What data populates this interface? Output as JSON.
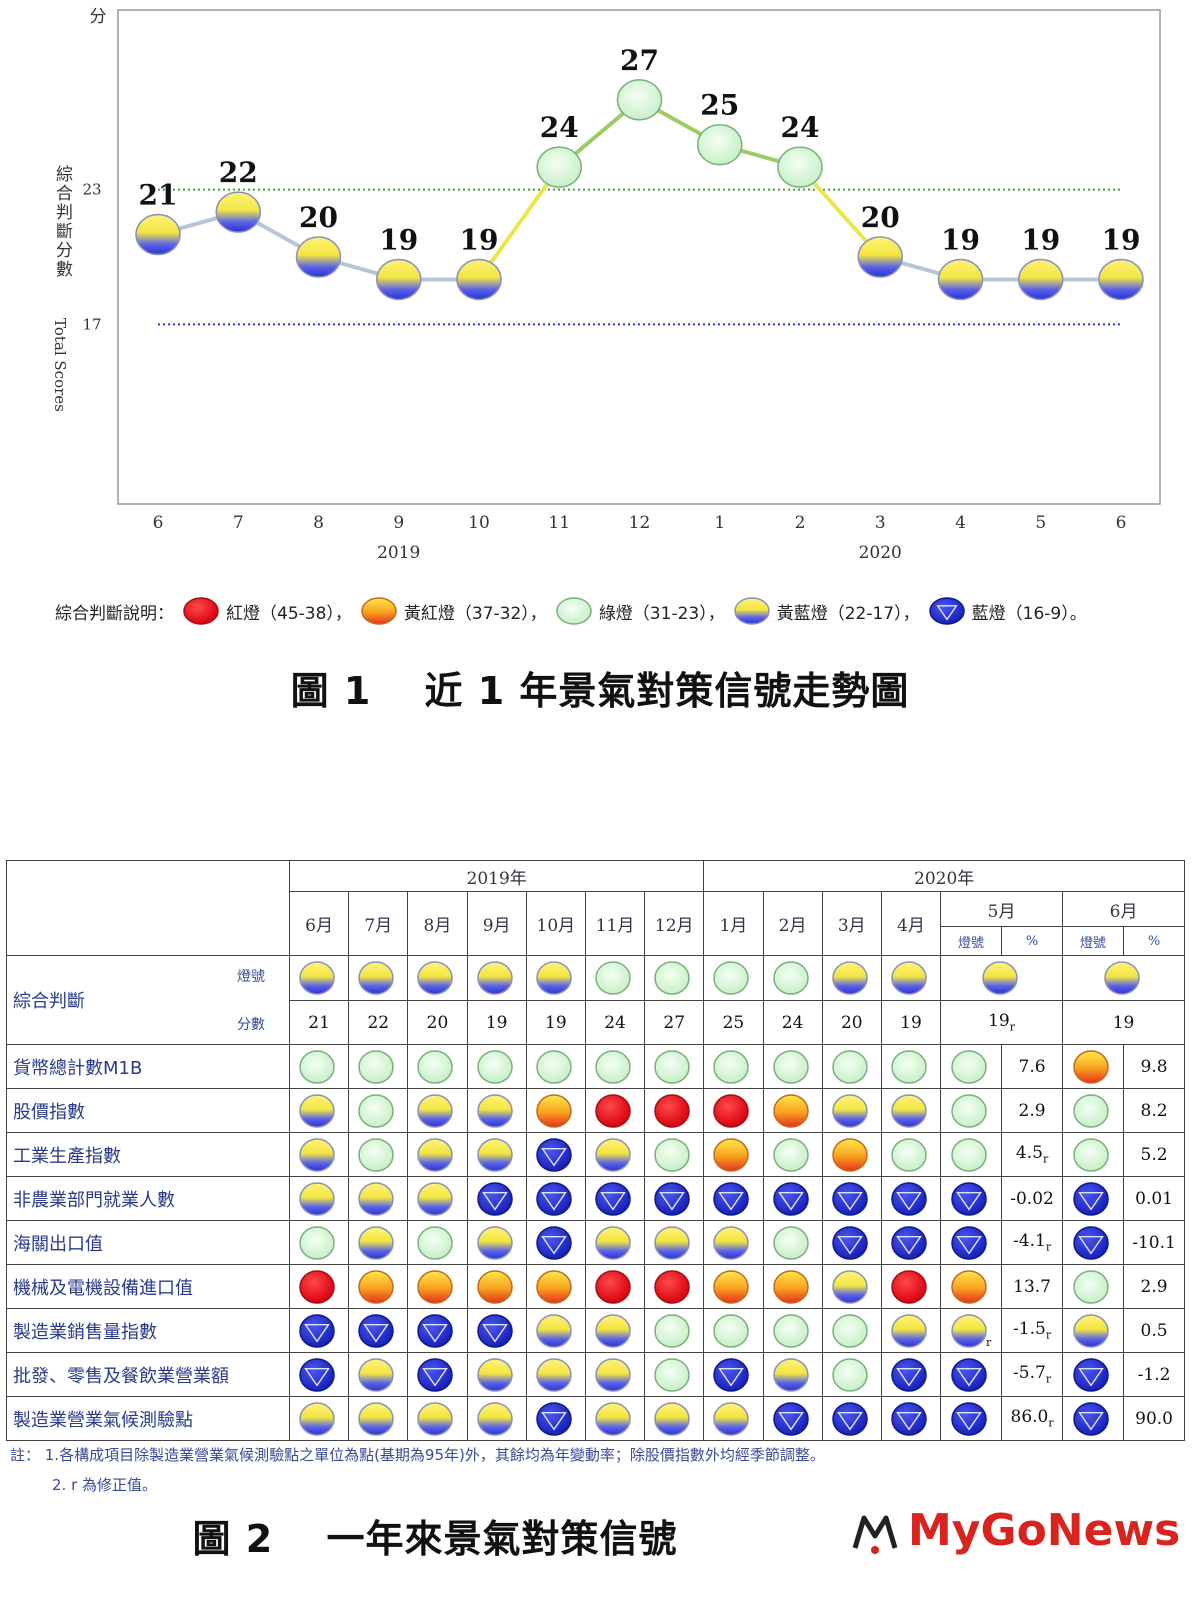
{
  "chart_data": {
    "type": "line",
    "title": "",
    "ylabel_unit": "分",
    "ylabel": "綜合判斷分數",
    "ylabel_en": "Total Scores",
    "ylim": [
      9,
      31
    ],
    "reference_lines": [
      23,
      17
    ],
    "categories": [
      "6",
      "7",
      "8",
      "9",
      "10",
      "11",
      "12",
      "1",
      "2",
      "3",
      "4",
      "5",
      "6"
    ],
    "year_labels": {
      "2019": "9",
      "2020": "3"
    },
    "years": [
      "2019",
      "2020"
    ],
    "values": [
      21,
      22,
      20,
      19,
      19,
      24,
      27,
      25,
      24,
      20,
      19,
      19,
      19
    ],
    "light_colors": [
      "yellow-blue",
      "yellow-blue",
      "yellow-blue",
      "yellow-blue",
      "yellow-blue",
      "green",
      "green",
      "green",
      "green",
      "yellow-blue",
      "yellow-blue",
      "yellow-blue",
      "yellow-blue"
    ],
    "grid": false
  },
  "legend": {
    "prefix": "綜合判斷說明：",
    "items": [
      {
        "type": "red",
        "text": "紅燈（45-38）"
      },
      {
        "type": "yellow-red",
        "text": "黃紅燈（37-32）"
      },
      {
        "type": "green",
        "text": "綠燈（31-23）"
      },
      {
        "type": "yellow-blue",
        "text": "黃藍燈（22-17）"
      },
      {
        "type": "blue",
        "text": "藍燈（16-9）"
      }
    ],
    "separators": [
      "，",
      "，",
      "，",
      "，",
      "。"
    ]
  },
  "caption1": "圖 1　 近 1 年景氣對策信號走勢圖",
  "colors": {
    "red": "#e8141b",
    "yellow-red": "#f59a1a",
    "green": "#d8f5d8",
    "yellow-blue": "#f5ea4a",
    "blue": "#1f2bd6",
    "line_blue": "#b8c4d8",
    "line_green": "#9ccc66",
    "line_yellow": "#e8e84a",
    "ref_green": "#4a9a4a",
    "ref_blue": "#2233cc"
  },
  "table": {
    "year_headers": [
      {
        "label": "2019年",
        "span": 7
      },
      {
        "label": "2020年",
        "span": 7
      }
    ],
    "months": [
      "6月",
      "7月",
      "8月",
      "9月",
      "10月",
      "11月",
      "12月",
      "1月",
      "2月",
      "3月",
      "4月"
    ],
    "may_header": "5月",
    "jun_header": "6月",
    "sub_light": "燈號",
    "sub_pct": "%",
    "composite": {
      "label": "綜合判斷",
      "light_label": "燈號",
      "score_label": "分數",
      "lights": [
        "yellow-blue",
        "yellow-blue",
        "yellow-blue",
        "yellow-blue",
        "yellow-blue",
        "green",
        "green",
        "green",
        "green",
        "yellow-blue",
        "yellow-blue",
        "yellow-blue",
        "yellow-blue"
      ],
      "scores": [
        "21",
        "22",
        "20",
        "19",
        "19",
        "24",
        "27",
        "25",
        "24",
        "20",
        "19"
      ],
      "may_score": "19",
      "may_score_mark": "r",
      "jun_score": "19"
    },
    "rows": [
      {
        "label": "貨幣總計數M1B",
        "lights": [
          "green",
          "green",
          "green",
          "green",
          "green",
          "green",
          "green",
          "green",
          "green",
          "green",
          "green"
        ],
        "may_light": "green",
        "may_pct": "7.6",
        "may_mark": "",
        "may_light_mark": "",
        "jun_light": "yellow-red",
        "jun_pct": "9.8"
      },
      {
        "label": "股價指數",
        "lights": [
          "yellow-blue",
          "green",
          "yellow-blue",
          "yellow-blue",
          "yellow-red",
          "red",
          "red",
          "red",
          "yellow-red",
          "yellow-blue",
          "yellow-blue"
        ],
        "may_light": "green",
        "may_pct": "2.9",
        "may_mark": "",
        "may_light_mark": "",
        "jun_light": "green",
        "jun_pct": "8.2"
      },
      {
        "label": "工業生產指數",
        "lights": [
          "yellow-blue",
          "green",
          "yellow-blue",
          "yellow-blue",
          "blue",
          "yellow-blue",
          "green",
          "yellow-red",
          "green",
          "yellow-red",
          "green"
        ],
        "may_light": "green",
        "may_pct": "4.5",
        "may_mark": "r",
        "may_light_mark": "",
        "jun_light": "green",
        "jun_pct": "5.2"
      },
      {
        "label": "非農業部門就業人數",
        "lights": [
          "yellow-blue",
          "yellow-blue",
          "yellow-blue",
          "blue",
          "blue",
          "blue",
          "blue",
          "blue",
          "blue",
          "blue",
          "blue"
        ],
        "may_light": "blue",
        "may_pct": "-0.02",
        "may_mark": "",
        "may_light_mark": "",
        "jun_light": "blue",
        "jun_pct": "0.01"
      },
      {
        "label": "海關出口值",
        "lights": [
          "green",
          "yellow-blue",
          "green",
          "yellow-blue",
          "blue",
          "yellow-blue",
          "yellow-blue",
          "yellow-blue",
          "green",
          "blue",
          "blue"
        ],
        "may_light": "blue",
        "may_pct": "-4.1",
        "may_mark": "r",
        "may_light_mark": "",
        "jun_light": "blue",
        "jun_pct": "-10.1"
      },
      {
        "label": "機械及電機設備進口值",
        "lights": [
          "red",
          "yellow-red",
          "yellow-red",
          "yellow-red",
          "yellow-red",
          "red",
          "red",
          "yellow-red",
          "yellow-red",
          "yellow-blue",
          "red"
        ],
        "may_light": "yellow-red",
        "may_pct": "13.7",
        "may_mark": "",
        "may_light_mark": "",
        "jun_light": "green",
        "jun_pct": "2.9"
      },
      {
        "label": "製造業銷售量指數",
        "lights": [
          "blue",
          "blue",
          "blue",
          "blue",
          "yellow-blue",
          "yellow-blue",
          "green",
          "green",
          "green",
          "green",
          "yellow-blue"
        ],
        "may_light": "yellow-blue",
        "may_pct": "-1.5",
        "may_mark": "r",
        "may_light_mark": "r",
        "jun_light": "yellow-blue",
        "jun_pct": "0.5"
      },
      {
        "label": "批發、零售及餐飲業營業額",
        "lights": [
          "blue",
          "yellow-blue",
          "blue",
          "yellow-blue",
          "yellow-blue",
          "yellow-blue",
          "green",
          "blue",
          "yellow-blue",
          "green",
          "blue"
        ],
        "may_light": "blue",
        "may_pct": "-5.7",
        "may_mark": "r",
        "may_light_mark": "",
        "jun_light": "blue",
        "jun_pct": "-1.2"
      },
      {
        "label": "製造業營業氣候測驗點",
        "lights": [
          "yellow-blue",
          "yellow-blue",
          "yellow-blue",
          "yellow-blue",
          "blue",
          "yellow-blue",
          "yellow-blue",
          "yellow-blue",
          "blue",
          "blue",
          "blue"
        ],
        "may_light": "blue",
        "may_pct": "86.0",
        "may_mark": "r",
        "may_light_mark": "",
        "jun_light": "blue",
        "jun_pct": "90.0"
      }
    ]
  },
  "notes": [
    "註：  1.各構成項目除製造業營業氣候測驗點之單位為點(基期為95年)外，其餘均為年變動率；除股價指數外均經季節調整。",
    "2. r 為修正值。"
  ],
  "caption2": "圖 2　 一年來景氣對策信號",
  "brand": "MyGoNews"
}
